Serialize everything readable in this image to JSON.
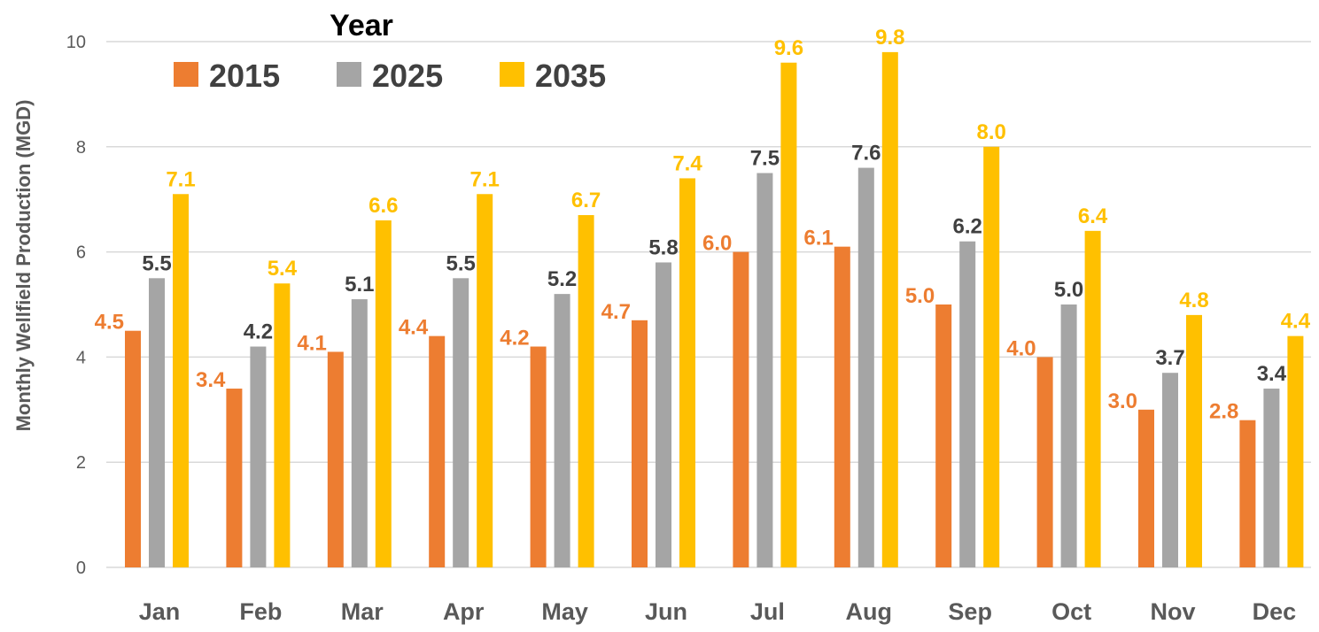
{
  "chart_data": {
    "type": "bar",
    "title": "",
    "xlabel": "",
    "ylabel": "Monthly Wellfield Production (MGD)",
    "ylim": [
      0,
      10
    ],
    "yticks": [
      0,
      2,
      4,
      6,
      8,
      10
    ],
    "grid": true,
    "legend": {
      "title": "Year",
      "placement": "top-left"
    },
    "categories": [
      "Jan",
      "Feb",
      "Mar",
      "Apr",
      "May",
      "Jun",
      "Jul",
      "Aug",
      "Sep",
      "Oct",
      "Nov",
      "Dec"
    ],
    "series": [
      {
        "name": "2015",
        "color": "#ED7D31",
        "label_color": "#ED7D31",
        "values": [
          4.5,
          3.4,
          4.1,
          4.4,
          4.2,
          4.7,
          6.0,
          6.1,
          5.0,
          4.0,
          3.0,
          2.8
        ]
      },
      {
        "name": "2025",
        "color": "#A5A5A5",
        "label_color": "#404040",
        "values": [
          5.5,
          4.2,
          5.1,
          5.5,
          5.2,
          5.8,
          7.5,
          7.6,
          6.2,
          5.0,
          3.7,
          3.4
        ]
      },
      {
        "name": "2035",
        "color": "#FFC000",
        "label_color": "#FFC000",
        "values": [
          7.1,
          5.4,
          6.6,
          7.1,
          6.7,
          7.4,
          9.6,
          9.8,
          8.0,
          6.4,
          4.8,
          4.4
        ]
      }
    ]
  }
}
